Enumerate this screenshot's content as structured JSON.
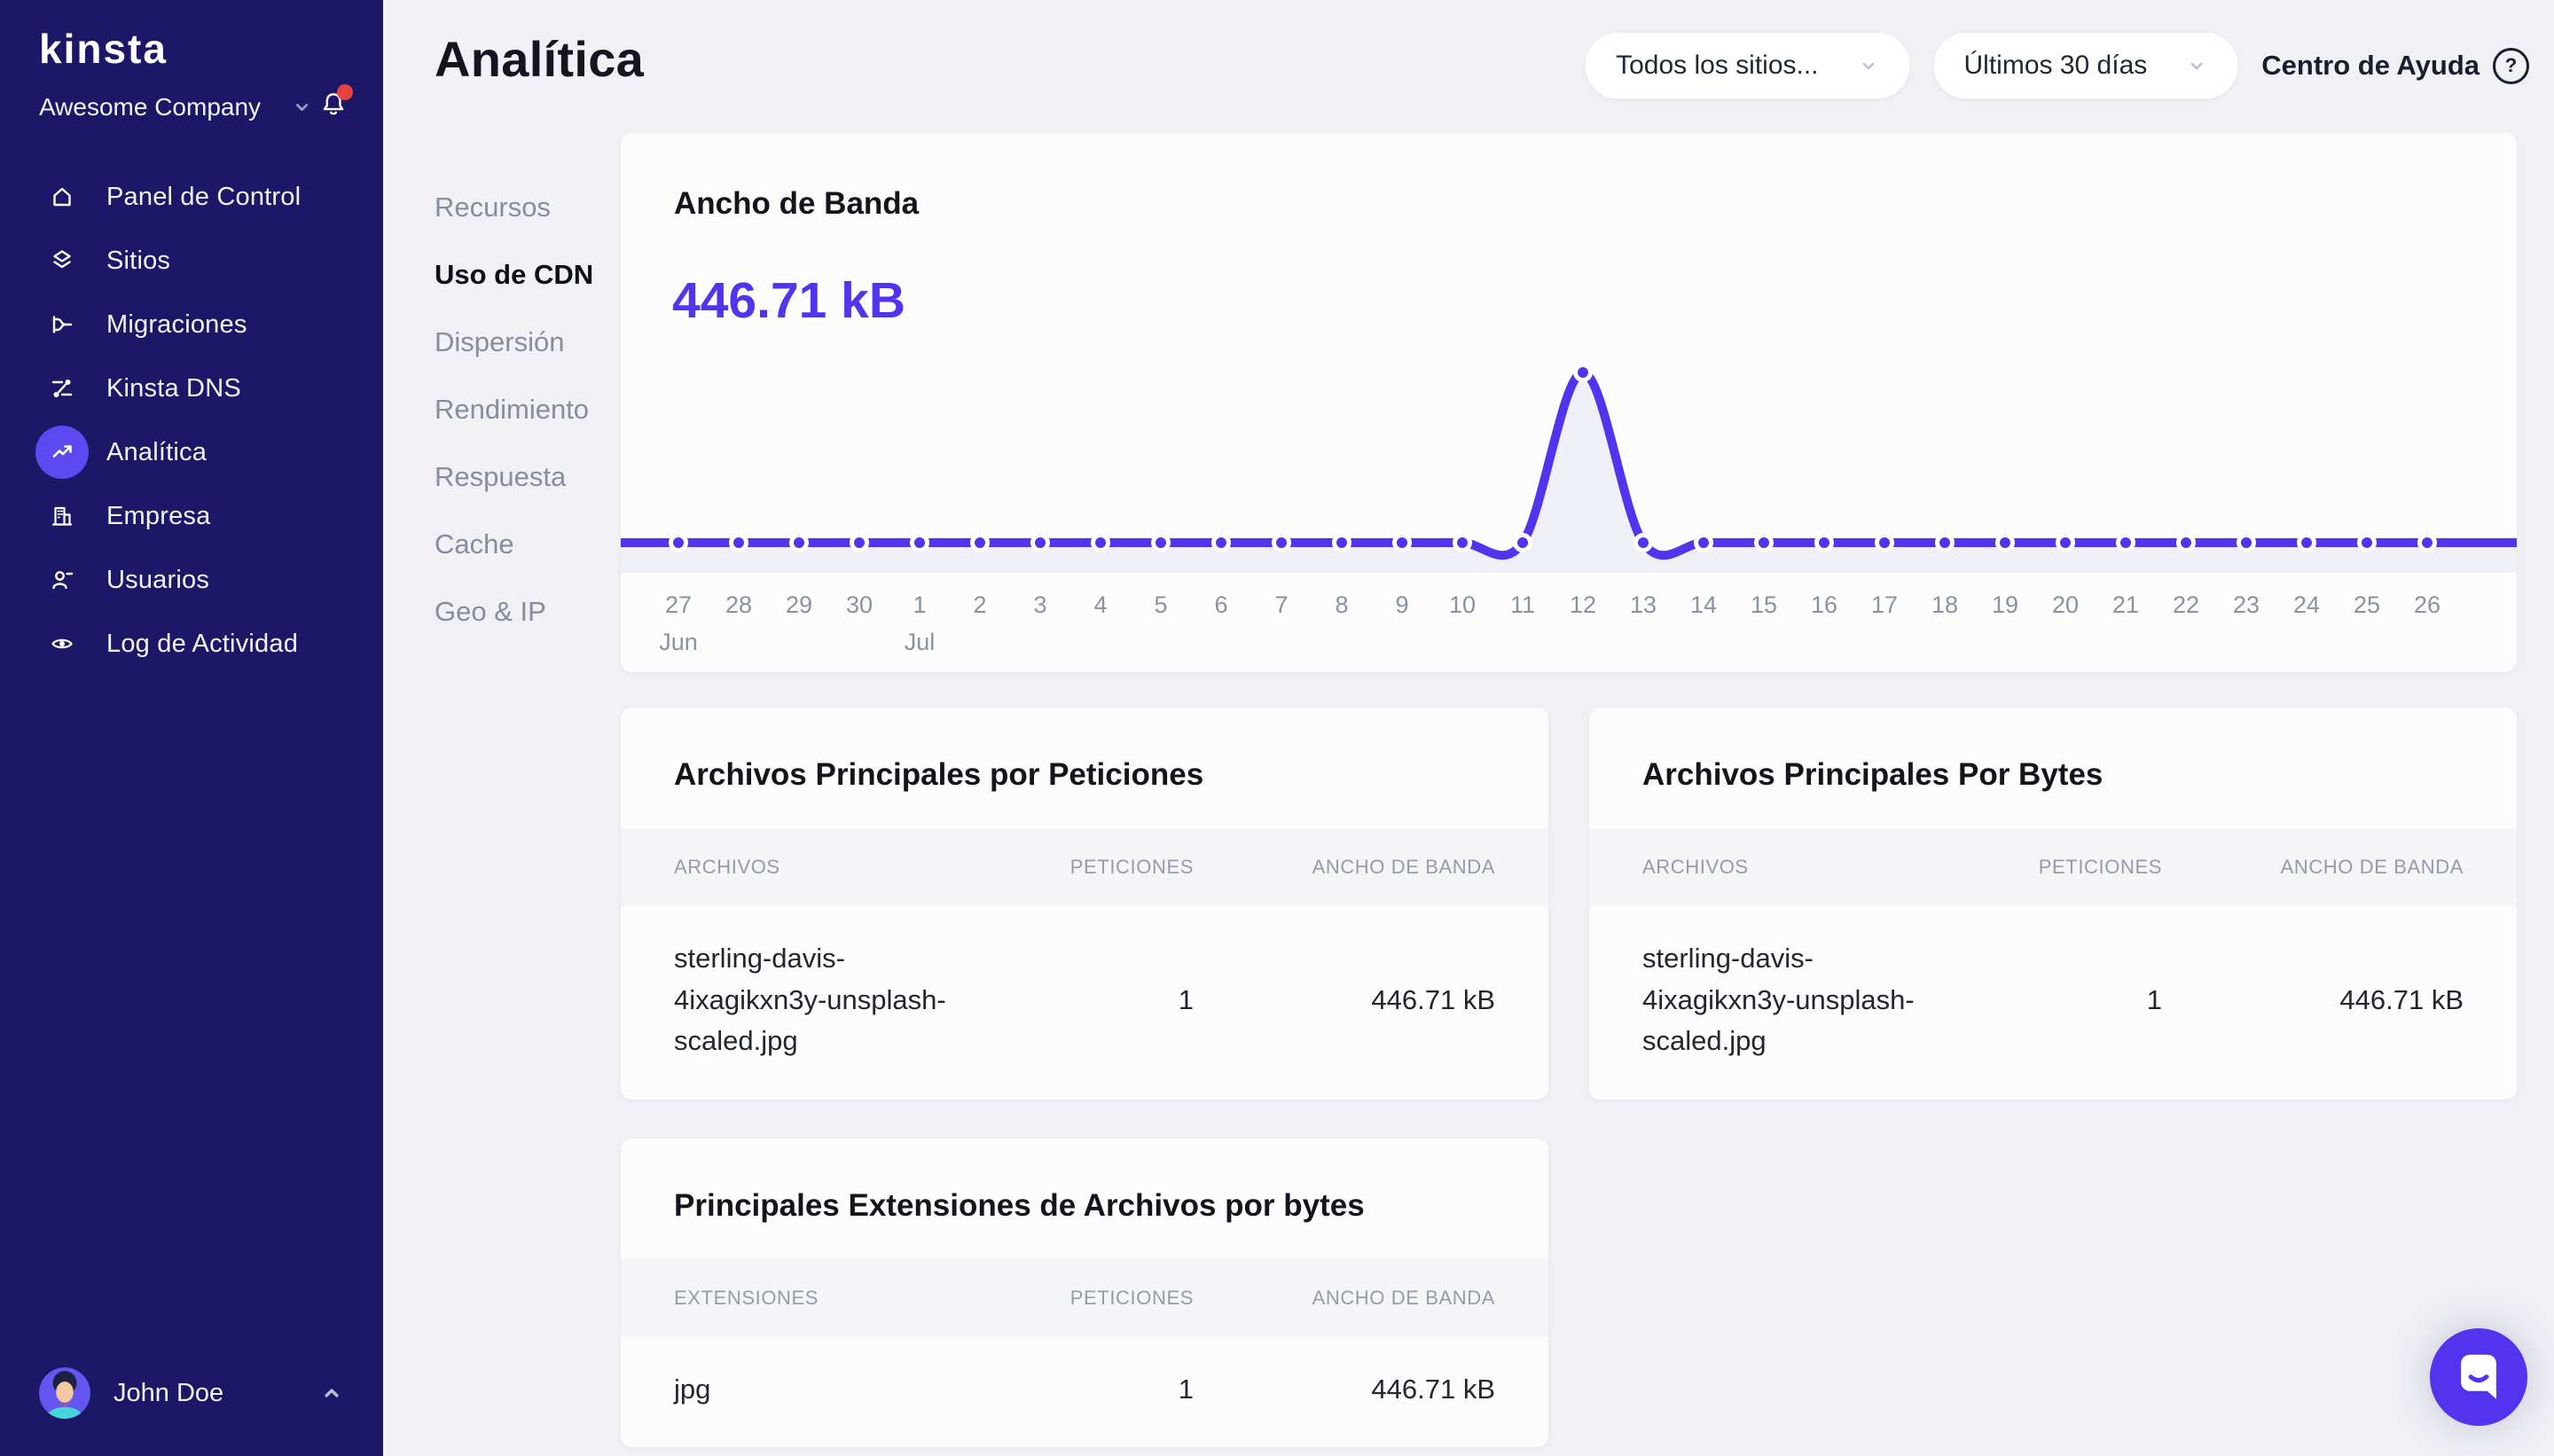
{
  "colors": {
    "accent": "#5333ed",
    "sidebar_bg": "#1d1768",
    "active_icon_bg": "#5c49f0",
    "notification_dot": "#e8423f",
    "page_bg": "#f0f0f5",
    "card_bg": "#fcfcfd",
    "chart_fill": "#eef0f6"
  },
  "sidebar": {
    "logo_text": "kinsta",
    "company": "Awesome Company",
    "items": [
      {
        "label": "Panel de Control",
        "icon": "home-icon",
        "active": false
      },
      {
        "label": "Sitios",
        "icon": "sites-icon",
        "active": false
      },
      {
        "label": "Migraciones",
        "icon": "migrations-icon",
        "active": false
      },
      {
        "label": "Kinsta DNS",
        "icon": "dns-icon",
        "active": false
      },
      {
        "label": "Analítica",
        "icon": "analytics-icon",
        "active": true
      },
      {
        "label": "Empresa",
        "icon": "company-icon",
        "active": false
      },
      {
        "label": "Usuarios",
        "icon": "users-icon",
        "active": false
      },
      {
        "label": "Log de Actividad",
        "icon": "activity-icon",
        "active": false
      }
    ],
    "user": {
      "name": "John Doe"
    }
  },
  "header": {
    "title": "Analítica",
    "site_filter": "Todos los sitios...",
    "date_filter": "Últimos 30 días",
    "help_label": "Centro de Ayuda",
    "help_glyph": "?"
  },
  "subnav": [
    {
      "label": "Recursos",
      "active": false
    },
    {
      "label": "Uso de CDN",
      "active": true
    },
    {
      "label": "Dispersión",
      "active": false
    },
    {
      "label": "Rendimiento",
      "active": false
    },
    {
      "label": "Respuesta",
      "active": false
    },
    {
      "label": "Cache",
      "active": false
    },
    {
      "label": "Geo & IP",
      "active": false
    }
  ],
  "bandwidth": {
    "title": "Ancho de Banda",
    "total": "446.71 kB"
  },
  "chart_data": {
    "type": "line",
    "title": "Ancho de Banda",
    "ylabel": "kB",
    "x": [
      "Jun 27",
      "Jun 28",
      "Jun 29",
      "Jun 30",
      "Jul 1",
      "Jul 2",
      "Jul 3",
      "Jul 4",
      "Jul 5",
      "Jul 6",
      "Jul 7",
      "Jul 8",
      "Jul 9",
      "Jul 10",
      "Jul 11",
      "Jul 12",
      "Jul 13",
      "Jul 14",
      "Jul 15",
      "Jul 16",
      "Jul 17",
      "Jul 18",
      "Jul 19",
      "Jul 20",
      "Jul 21",
      "Jul 22",
      "Jul 23",
      "Jul 24",
      "Jul 25",
      "Jul 26"
    ],
    "values": [
      0,
      0,
      0,
      0,
      0,
      0,
      0,
      0,
      0,
      0,
      0,
      0,
      0,
      0,
      0,
      446.71,
      0,
      0,
      0,
      0,
      0,
      0,
      0,
      0,
      0,
      0,
      0,
      0,
      0,
      0
    ],
    "ylim": [
      0,
      446.71
    ],
    "grid": false,
    "legend": false,
    "line_color": "#5333ed",
    "point_color": "#5333ed",
    "fill_color": "#eef0f6"
  },
  "tables": [
    {
      "title": "Archivos Principales por Peticiones",
      "columns": [
        "ARCHIVOS",
        "PETICIONES",
        "ANCHO DE BANDA"
      ],
      "rows": [
        [
          "sterling-davis-4ixagikxn3y-unsplash-scaled.jpg",
          "1",
          "446.71 kB"
        ]
      ]
    },
    {
      "title": "Archivos Principales Por Bytes",
      "columns": [
        "ARCHIVOS",
        "PETICIONES",
        "ANCHO DE BANDA"
      ],
      "rows": [
        [
          "sterling-davis-4ixagikxn3y-unsplash-scaled.jpg",
          "1",
          "446.71 kB"
        ]
      ]
    },
    {
      "title": "Principales Extensiones de Archivos por bytes",
      "columns": [
        "EXTENSIONES",
        "PETICIONES",
        "ANCHO DE BANDA"
      ],
      "rows": [
        [
          "jpg",
          "1",
          "446.71 kB"
        ]
      ]
    }
  ]
}
